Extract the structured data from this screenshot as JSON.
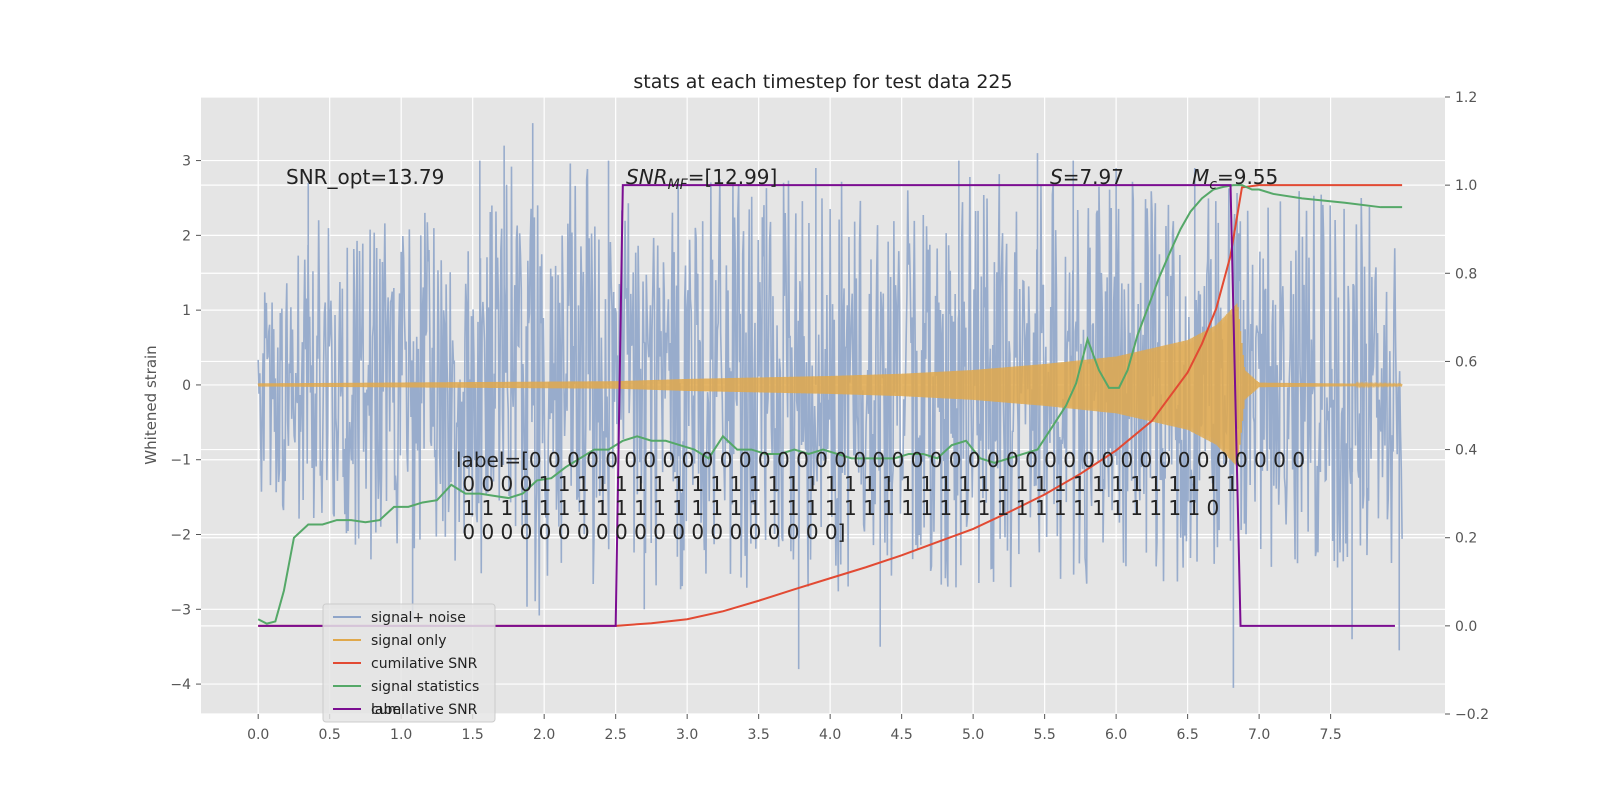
{
  "chart_data": {
    "type": "line",
    "title": "stats at each timestep for test data 225",
    "ylabel": "Whitened strain",
    "xlim": [
      -0.4,
      8.3
    ],
    "ylim": [
      -4.4,
      3.85
    ],
    "y2lim": [
      -0.2,
      1.2
    ],
    "xticks": [
      "0.0",
      "0.5",
      "1.0",
      "1.5",
      "2.0",
      "2.5",
      "3.0",
      "3.5",
      "4.0",
      "4.5",
      "5.0",
      "5.5",
      "6.0",
      "6.5",
      "7.0",
      "7.5"
    ],
    "yticks": [
      "3",
      "2",
      "1",
      "0",
      "−1",
      "−2",
      "−3",
      "−4"
    ],
    "y2ticks": [
      "1.2",
      "1.0",
      "0.8",
      "0.6",
      "0.4",
      "0.2",
      "0.0",
      "−0.2"
    ],
    "grid": true,
    "legend_position": "lower-left",
    "annotations": {
      "snr_opt": "SNR_opt=13.79",
      "snr_mf_main": "SNR",
      "snr_mf_sub": "MF",
      "snr_mf_rest": "=[12.99]",
      "s_sym": "S",
      "s_rest": "=7.97",
      "mc_main": "M",
      "mc_sub": "c",
      "mc_rest": "=9.55"
    },
    "label_text": [
      "label=[0 0 0 0 0 0 0 0 0 0 0 0 0 0 0 0 0 0 0 0 0 0 0 0 0 0 0 0 0 0 0 0 0 0 0 0 0 0 0 0 0",
      " 0 0 0 0 1 1 1 1 1 1 1 1 1 1 1 1 1 1 1 1 1 1 1 1 1 1 1 1 1 1 1 1 1 1 1 1 1 1 1 1 1",
      " 1 1 1 1 1 1 1 1 1 1 1 1 1 1 1 1 1 1 1 1 1 1 1 1 1 1 1 1 1 1 1 1 1 1 1 1 1 1 1 0",
      " 0 0 0 0 0 0 0 0 0 0 0 0 0 0 0 0 0 0 0 0]"
    ],
    "series": [
      {
        "name": "signal+ noise",
        "color": "#8fa5c9",
        "axis": "left",
        "envelope": [
          [
            0.0,
            1.4
          ],
          [
            0.5,
            2.4
          ],
          [
            1.0,
            2.3
          ],
          [
            1.5,
            2.6
          ],
          [
            2.0,
            3.2
          ],
          [
            2.5,
            2.7
          ],
          [
            3.0,
            2.8
          ],
          [
            3.5,
            2.7
          ],
          [
            4.0,
            2.8
          ],
          [
            4.5,
            2.6
          ],
          [
            5.0,
            2.9
          ],
          [
            5.5,
            2.7
          ],
          [
            6.0,
            2.8
          ],
          [
            6.5,
            2.6
          ],
          [
            7.0,
            2.7
          ],
          [
            7.5,
            2.6
          ],
          [
            8.0,
            2.4
          ]
        ],
        "peaks": [
          [
            1.92,
            3.5
          ],
          [
            1.72,
            3.2
          ],
          [
            3.78,
            -3.8
          ],
          [
            6.82,
            -4.05
          ],
          [
            5.7,
            3.0
          ],
          [
            6.0,
            2.9
          ],
          [
            5.45,
            3.1
          ],
          [
            6.55,
            2.9
          ],
          [
            2.45,
            3.0
          ],
          [
            3.9,
            2.9
          ],
          [
            4.35,
            -3.5
          ],
          [
            7.65,
            -3.4
          ],
          [
            7.98,
            -3.55
          ],
          [
            1.55,
            3.0
          ],
          [
            0.35,
            2.7
          ],
          [
            4.9,
            3.0
          ],
          [
            1.08,
            -3.15
          ],
          [
            2.7,
            -3.0
          ]
        ]
      },
      {
        "name": "signal only",
        "color": "#e0a84b",
        "axis": "left",
        "amplitude": [
          [
            0.0,
            0.02
          ],
          [
            2.5,
            0.05
          ],
          [
            3.0,
            0.08
          ],
          [
            4.0,
            0.12
          ],
          [
            4.5,
            0.15
          ],
          [
            5.0,
            0.2
          ],
          [
            5.5,
            0.28
          ],
          [
            6.0,
            0.38
          ],
          [
            6.5,
            0.6
          ],
          [
            6.7,
            0.8
          ],
          [
            6.85,
            1.1
          ],
          [
            6.9,
            0.2
          ],
          [
            7.0,
            0.03
          ],
          [
            8.0,
            0.01
          ]
        ]
      },
      {
        "name": "cumilative SNR",
        "color": "#e24a33",
        "axis": "right",
        "x": [
          0.0,
          2.5,
          2.75,
          3.0,
          3.25,
          3.5,
          3.75,
          4.0,
          4.25,
          4.5,
          4.75,
          5.0,
          5.25,
          5.5,
          5.75,
          6.0,
          6.25,
          6.5,
          6.6,
          6.7,
          6.8,
          6.88,
          7.0,
          7.5,
          8.0
        ],
        "y": [
          0.0,
          0.0,
          0.006,
          0.015,
          0.033,
          0.057,
          0.083,
          0.108,
          0.133,
          0.16,
          0.19,
          0.22,
          0.258,
          0.298,
          0.345,
          0.398,
          0.465,
          0.575,
          0.64,
          0.72,
          0.84,
          0.995,
          1.0,
          1.0,
          1.0
        ]
      },
      {
        "name": "signal statistics",
        "color": "#55a868",
        "axis": "right",
        "x": [
          0.0,
          0.06,
          0.12,
          0.18,
          0.25,
          0.35,
          0.45,
          0.55,
          0.65,
          0.75,
          0.85,
          0.95,
          1.05,
          1.15,
          1.25,
          1.35,
          1.45,
          1.55,
          1.65,
          1.75,
          1.85,
          1.95,
          2.05,
          2.15,
          2.25,
          2.35,
          2.45,
          2.55,
          2.65,
          2.75,
          2.85,
          2.95,
          3.05,
          3.15,
          3.25,
          3.35,
          3.45,
          3.55,
          3.65,
          3.75,
          3.85,
          3.95,
          4.05,
          4.15,
          4.25,
          4.35,
          4.45,
          4.55,
          4.65,
          4.75,
          4.85,
          4.95,
          5.05,
          5.15,
          5.25,
          5.35,
          5.45,
          5.55,
          5.65,
          5.72,
          5.8,
          5.88,
          5.95,
          6.02,
          6.08,
          6.15,
          6.22,
          6.3,
          6.38,
          6.45,
          6.52,
          6.6,
          6.68,
          6.75,
          6.82,
          6.88,
          6.95,
          7.0,
          7.1,
          7.3,
          7.6,
          7.85,
          8.0
        ],
        "y": [
          0.015,
          0.005,
          0.01,
          0.08,
          0.2,
          0.23,
          0.23,
          0.24,
          0.24,
          0.235,
          0.24,
          0.27,
          0.27,
          0.28,
          0.285,
          0.32,
          0.3,
          0.3,
          0.295,
          0.29,
          0.3,
          0.33,
          0.335,
          0.36,
          0.38,
          0.4,
          0.4,
          0.42,
          0.43,
          0.42,
          0.42,
          0.41,
          0.4,
          0.38,
          0.43,
          0.4,
          0.4,
          0.39,
          0.39,
          0.4,
          0.39,
          0.4,
          0.39,
          0.38,
          0.38,
          0.38,
          0.38,
          0.39,
          0.39,
          0.38,
          0.41,
          0.42,
          0.38,
          0.37,
          0.38,
          0.39,
          0.4,
          0.45,
          0.5,
          0.55,
          0.65,
          0.58,
          0.54,
          0.54,
          0.58,
          0.66,
          0.72,
          0.79,
          0.85,
          0.9,
          0.94,
          0.97,
          0.99,
          0.996,
          1.0,
          1.0,
          0.99,
          0.99,
          0.98,
          0.97,
          0.96,
          0.95,
          0.95
        ]
      },
      {
        "name": "label",
        "color": "#7b0d91",
        "axis": "right",
        "x": [
          0.0,
          2.5,
          2.55,
          6.8,
          6.87,
          7.95
        ],
        "y": [
          0,
          0,
          1,
          1,
          0,
          0
        ]
      }
    ],
    "legend_ghost": "cumilative SNR"
  }
}
